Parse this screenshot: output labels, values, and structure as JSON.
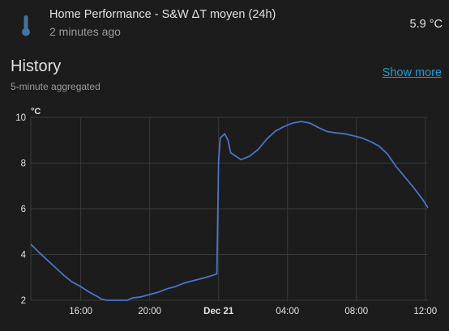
{
  "entity": {
    "icon": "thermometer-icon",
    "name": "Home Performance - S&W ΔT moyen (24h)",
    "last_changed": "2 minutes ago",
    "state": "5.9 °C"
  },
  "history": {
    "title": "History",
    "subtitle": "5-minute aggregated",
    "show_more": "Show more"
  },
  "colors": {
    "line": "#4a73c9",
    "link": "#1e9bd7",
    "icon": "#44739e"
  },
  "chart_data": {
    "type": "line",
    "unit_label": "°C",
    "ylim": [
      2,
      10
    ],
    "xlim": [
      13.1,
      36.15
    ],
    "y_ticks": [
      {
        "value": 2,
        "label": "2"
      },
      {
        "value": 4,
        "label": "4"
      },
      {
        "value": 6,
        "label": "6"
      },
      {
        "value": 8,
        "label": "8"
      },
      {
        "value": 10,
        "label": "10"
      }
    ],
    "x_ticks": [
      {
        "value": 16,
        "label": "16:00",
        "bold": false
      },
      {
        "value": 20,
        "label": "20:00",
        "bold": false
      },
      {
        "value": 24,
        "label": "Dec 21",
        "bold": true
      },
      {
        "value": 28,
        "label": "04:00",
        "bold": false
      },
      {
        "value": 32,
        "label": "08:00",
        "bold": false
      },
      {
        "value": 36,
        "label": "12:00",
        "bold": false
      }
    ],
    "grid": true,
    "series": [
      {
        "points": [
          [
            13.1,
            4.45
          ],
          [
            13.5,
            4.15
          ],
          [
            14.0,
            3.8
          ],
          [
            14.5,
            3.45
          ],
          [
            15.0,
            3.1
          ],
          [
            15.5,
            2.8
          ],
          [
            16.0,
            2.6
          ],
          [
            16.5,
            2.35
          ],
          [
            17.0,
            2.15
          ],
          [
            17.2,
            2.05
          ],
          [
            17.5,
            2.0
          ],
          [
            18.0,
            2.0
          ],
          [
            18.7,
            2.0
          ],
          [
            19.0,
            2.1
          ],
          [
            19.5,
            2.15
          ],
          [
            20.0,
            2.25
          ],
          [
            20.5,
            2.35
          ],
          [
            21.0,
            2.5
          ],
          [
            21.5,
            2.6
          ],
          [
            22.0,
            2.75
          ],
          [
            22.5,
            2.85
          ],
          [
            23.0,
            2.95
          ],
          [
            23.5,
            3.05
          ],
          [
            23.9,
            3.15
          ],
          [
            24.0,
            8.1
          ],
          [
            24.1,
            9.1
          ],
          [
            24.35,
            9.28
          ],
          [
            24.55,
            9.0
          ],
          [
            24.7,
            8.45
          ],
          [
            25.0,
            8.3
          ],
          [
            25.3,
            8.15
          ],
          [
            25.8,
            8.3
          ],
          [
            26.3,
            8.6
          ],
          [
            26.8,
            9.05
          ],
          [
            27.3,
            9.4
          ],
          [
            27.8,
            9.6
          ],
          [
            28.3,
            9.75
          ],
          [
            28.8,
            9.82
          ],
          [
            29.3,
            9.75
          ],
          [
            29.8,
            9.55
          ],
          [
            30.3,
            9.38
          ],
          [
            30.8,
            9.32
          ],
          [
            31.3,
            9.28
          ],
          [
            31.8,
            9.2
          ],
          [
            32.3,
            9.1
          ],
          [
            32.8,
            8.95
          ],
          [
            33.3,
            8.75
          ],
          [
            33.8,
            8.4
          ],
          [
            34.3,
            7.85
          ],
          [
            34.8,
            7.4
          ],
          [
            35.3,
            6.95
          ],
          [
            35.8,
            6.45
          ],
          [
            36.15,
            6.05
          ]
        ]
      }
    ]
  }
}
